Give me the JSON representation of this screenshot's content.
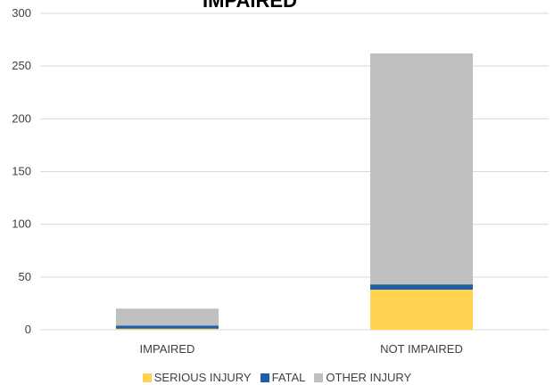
{
  "chart_data": {
    "type": "bar",
    "stacked": true,
    "title": "IMPAIRED",
    "categories": [
      "IMPAIRED",
      "NOT IMPAIRED"
    ],
    "series": [
      {
        "name": "SERIOUS INJURY",
        "color": "#FFD24F",
        "values": [
          1,
          38
        ]
      },
      {
        "name": "FATAL",
        "color": "#1F5FA8",
        "values": [
          3,
          5
        ]
      },
      {
        "name": "OTHER INJURY",
        "color": "#BFBFBF",
        "values": [
          16,
          219
        ]
      }
    ],
    "ylim": [
      0,
      300
    ],
    "yticks": [
      0,
      50,
      100,
      150,
      200,
      250,
      300
    ],
    "grid": true,
    "legend_position": "bottom"
  }
}
